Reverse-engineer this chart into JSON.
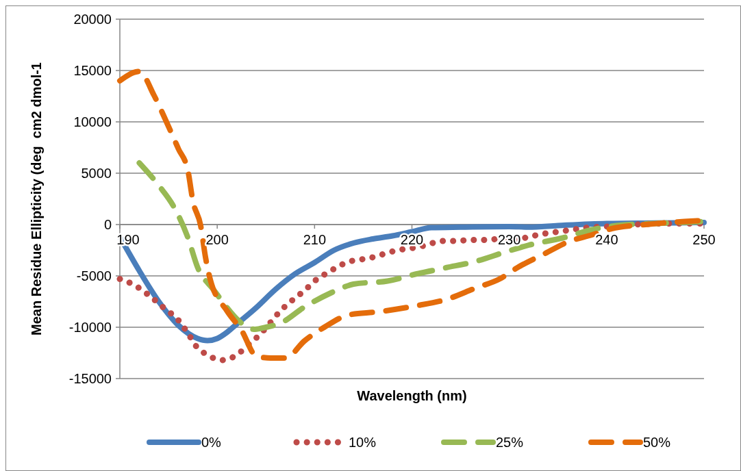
{
  "chart_data": {
    "type": "line",
    "xlabel": "Wavelength (nm)",
    "ylabel": "Mean Residue Ellipticity (deg  cm2 dmol-1",
    "xlim": [
      190,
      250
    ],
    "xticks": [
      190,
      200,
      210,
      220,
      230,
      240,
      250
    ],
    "ylim": [
      -15000,
      20000
    ],
    "yticks": [
      -15000,
      -10000,
      -5000,
      0,
      5000,
      10000,
      15000,
      20000
    ],
    "grid": "y",
    "legend": "bottom",
    "marker": "none",
    "series": [
      {
        "name": "0%",
        "color": "#4a7ebb",
        "line_style": "solid",
        "x": [
          190,
          192,
          194,
          196,
          198,
          199,
          200,
          201,
          202,
          204,
          206,
          208,
          210,
          212,
          214,
          216,
          218,
          220,
          222,
          225,
          230,
          232,
          235,
          240,
          245,
          250
        ],
        "values": [
          -1200,
          -4500,
          -7500,
          -9800,
          -11100,
          -11300,
          -11100,
          -10500,
          -9700,
          -8100,
          -6300,
          -4800,
          -3700,
          -2500,
          -1800,
          -1400,
          -1100,
          -700,
          -300,
          -250,
          -200,
          -250,
          -100,
          100,
          150,
          200
        ]
      },
      {
        "name": "10%",
        "color": "#be4b48",
        "line_style": "dotted",
        "x": [
          190,
          191.5,
          193,
          194.5,
          196,
          197,
          197.8,
          199,
          200.5,
          202,
          203.2,
          204.5,
          205.5,
          206.5,
          207.8,
          209,
          210,
          211.5,
          212.8,
          214,
          215.5,
          217,
          218.5,
          220,
          221.5,
          223,
          224.5,
          226,
          227.5,
          229,
          230.5,
          232,
          233.5,
          235,
          236.5,
          238,
          240,
          243,
          246,
          250
        ],
        "values": [
          -5300,
          -5900,
          -6900,
          -8100,
          -9300,
          -10600,
          -11800,
          -12700,
          -13200,
          -12700,
          -11700,
          -10600,
          -9500,
          -8400,
          -7300,
          -6400,
          -5500,
          -4600,
          -3900,
          -3500,
          -3300,
          -2900,
          -2500,
          -2300,
          -2000,
          -1600,
          -1600,
          -1500,
          -1500,
          -1400,
          -1500,
          -1200,
          -900,
          -700,
          -500,
          -300,
          -200,
          0,
          100,
          100
        ]
      },
      {
        "name": "25%",
        "color": "#98b954",
        "line_style": "dashed",
        "x": [
          192,
          194,
          195.5,
          197,
          198,
          199.5,
          203.9,
          205,
          206.5,
          209,
          211.8,
          213,
          214,
          217.5,
          220.5,
          222,
          223.5,
          226.5,
          229.5,
          232,
          235.5,
          238.5,
          241,
          245,
          250
        ],
        "values": [
          6000,
          3800,
          1800,
          -1300,
          -4200,
          -6200,
          -10200,
          -10000,
          -9600,
          -8000,
          -6600,
          -6100,
          -5800,
          -5500,
          -4800,
          -4500,
          -4200,
          -3600,
          -2700,
          -2000,
          -1300,
          -500,
          -100,
          100,
          300
        ]
      },
      {
        "name": "50%",
        "color": "#e46c0a",
        "line_style": "dashed",
        "x": [
          190,
          192,
          193.5,
          194.5,
          196,
          197,
          197.5,
          198.3,
          198.8,
          199.3,
          201,
          202.5,
          204,
          205.5,
          207,
          209,
          211,
          213.5,
          216.5,
          220.5,
          223.5,
          226.5,
          229,
          231,
          233.5,
          236,
          238.5,
          240.5,
          244,
          248,
          250
        ],
        "values": [
          14000,
          14900,
          12600,
          10600,
          7400,
          5200,
          2300,
          -100,
          -3200,
          -5400,
          -8400,
          -10300,
          -12800,
          -13000,
          -13000,
          -11300,
          -10000,
          -8800,
          -8500,
          -7900,
          -7300,
          -6200,
          -5300,
          -4100,
          -2900,
          -1700,
          -1000,
          -400,
          0,
          300,
          400
        ]
      }
    ]
  }
}
